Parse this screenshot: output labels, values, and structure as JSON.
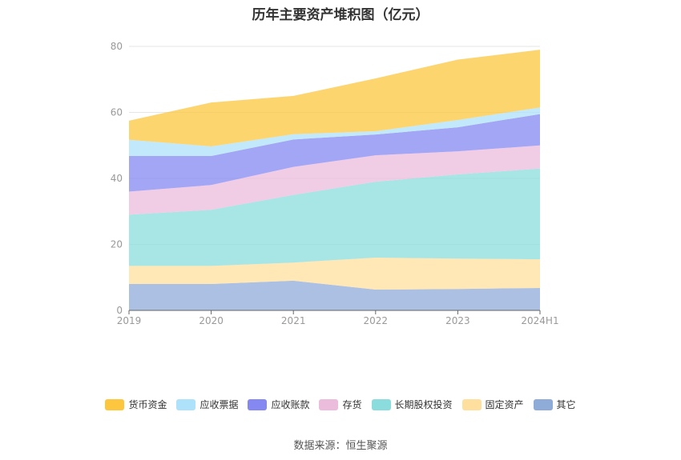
{
  "chart_data": {
    "type": "area",
    "stacked": true,
    "title": "历年主要资产堆积图（亿元）",
    "categories": [
      "2019",
      "2020",
      "2021",
      "2022",
      "2023",
      "2024H1"
    ],
    "ylim": [
      0,
      80
    ],
    "yticks": [
      0,
      20,
      40,
      60,
      80
    ],
    "grid": true,
    "legend_position": "bottom",
    "series": [
      {
        "name": "其它",
        "color": "#8fabd8",
        "values": [
          8.0,
          8.0,
          9.0,
          6.3,
          6.5,
          6.8
        ]
      },
      {
        "name": "固定资产",
        "color": "#ffdf9e",
        "values": [
          5.5,
          5.5,
          5.5,
          9.7,
          9.2,
          8.7
        ]
      },
      {
        "name": "长期股权投资",
        "color": "#8bdcdc",
        "values": [
          15.5,
          17.0,
          20.5,
          23.0,
          25.5,
          27.5
        ]
      },
      {
        "name": "存货",
        "color": "#ecbcdc",
        "values": [
          7.0,
          7.5,
          8.5,
          8.0,
          7.0,
          7.0
        ]
      },
      {
        "name": "应收账款",
        "color": "#8488f0",
        "values": [
          10.8,
          8.8,
          8.3,
          6.3,
          7.3,
          9.5
        ]
      },
      {
        "name": "应收票据",
        "color": "#aee2fa",
        "values": [
          4.9,
          2.9,
          1.6,
          1.0,
          2.2,
          2.0
        ]
      },
      {
        "name": "货币资金",
        "color": "#fcc73e",
        "values": [
          5.8,
          13.3,
          11.6,
          16.0,
          18.3,
          17.5
        ]
      }
    ]
  },
  "legend_order": [
    "货币资金",
    "应收票据",
    "应收账款",
    "存货",
    "长期股权投资",
    "固定资产",
    "其它"
  ],
  "source": "数据来源：恒生聚源"
}
